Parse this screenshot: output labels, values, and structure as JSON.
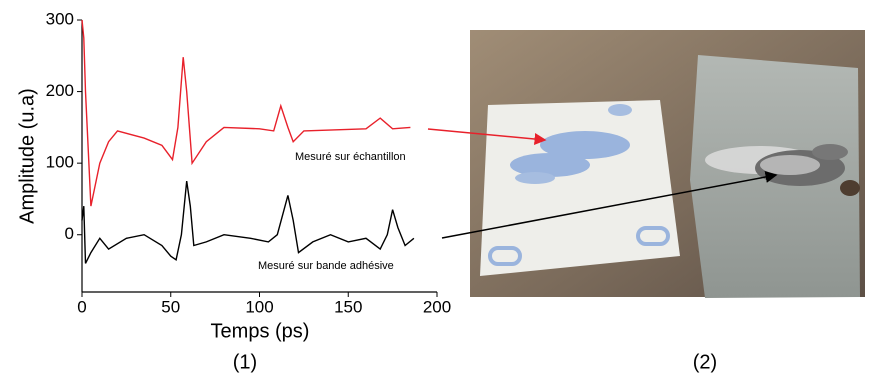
{
  "chart_data": {
    "type": "line",
    "xlabel": "Temps (ps)",
    "ylabel": "Amplitude (u.a)",
    "xlim": [
      0,
      200
    ],
    "xticks": [
      0,
      50,
      100,
      150,
      200
    ],
    "ylim": [
      -80,
      300
    ],
    "yticks": [
      0,
      100,
      200,
      300
    ],
    "series": [
      {
        "name": "Mesuré sur échantillon",
        "color": "#e8212b",
        "x": [
          0,
          1,
          2,
          5,
          10,
          15,
          20,
          35,
          45,
          51,
          54,
          57,
          59,
          62,
          70,
          80,
          100,
          108,
          112,
          116,
          119,
          125,
          160,
          168,
          175,
          185
        ],
        "values": [
          300,
          275,
          200,
          40,
          100,
          130,
          145,
          135,
          125,
          105,
          150,
          248,
          200,
          100,
          130,
          150,
          148,
          145,
          180,
          150,
          130,
          145,
          148,
          163,
          148,
          150
        ]
      },
      {
        "name": "Mesuré sur bande adhésive",
        "color": "#000000",
        "x": [
          0,
          1,
          2,
          5,
          10,
          15,
          25,
          35,
          45,
          50,
          53,
          56,
          59,
          61,
          63,
          70,
          80,
          95,
          105,
          110,
          116,
          119,
          122,
          130,
          140,
          150,
          160,
          168,
          172,
          175,
          178,
          182,
          187
        ],
        "values": [
          20,
          40,
          -40,
          -25,
          -5,
          -20,
          -5,
          0,
          -15,
          -30,
          -35,
          0,
          75,
          40,
          -15,
          -10,
          0,
          -5,
          -10,
          0,
          55,
          20,
          -25,
          -10,
          0,
          -10,
          -5,
          -20,
          0,
          35,
          10,
          -15,
          -5
        ]
      }
    ]
  },
  "panels": [
    "(1)",
    "(2)"
  ]
}
